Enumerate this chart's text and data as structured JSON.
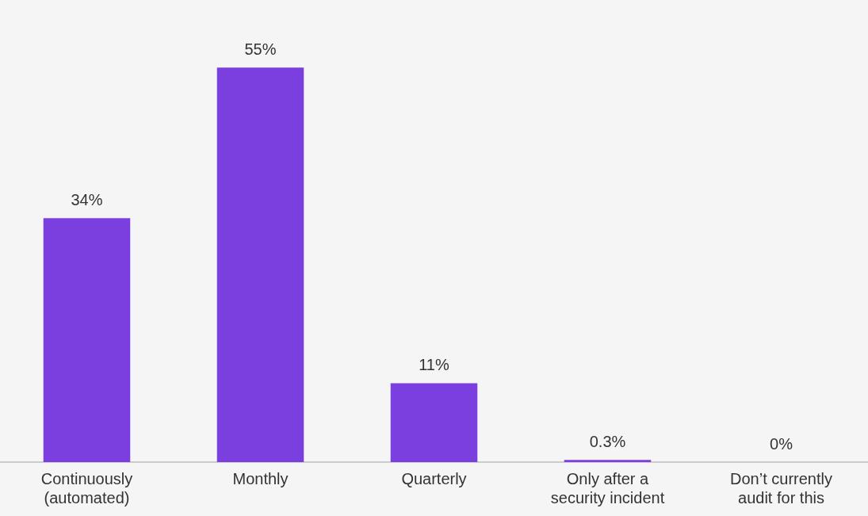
{
  "chart_data": {
    "type": "bar",
    "categories": [
      "Continuously (automated)",
      "Monthly",
      "Quarterly",
      "Only after a security incident",
      "Don’t currently audit for this"
    ],
    "values": [
      34,
      55,
      11,
      0.3,
      0
    ],
    "color": "#7b3fe0",
    "value_labels": [
      "34%",
      "55%",
      "11%",
      "0.3%",
      "0%"
    ],
    "grid": false,
    "legend": false
  }
}
